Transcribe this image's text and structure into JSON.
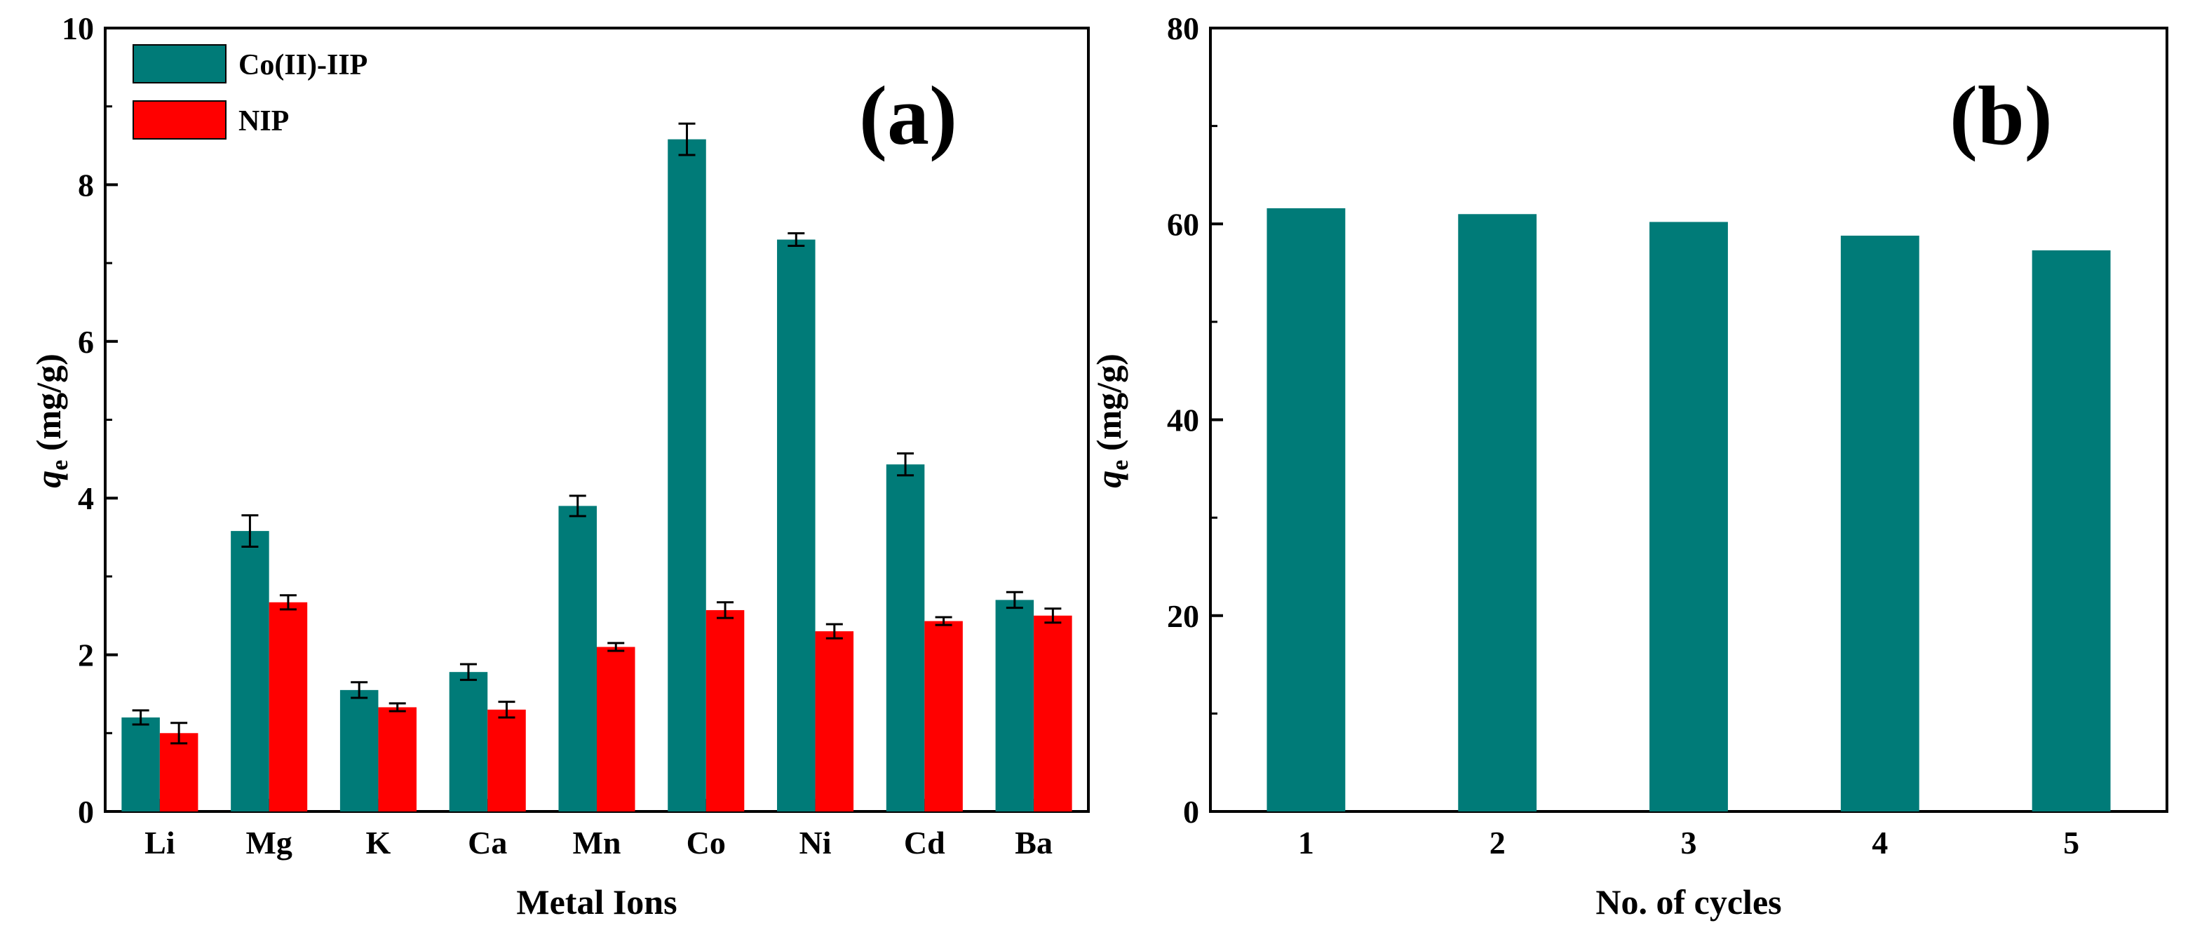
{
  "chart_data": [
    {
      "panel": "(a)",
      "type": "bar",
      "title": "",
      "xlabel": "Metal Ions",
      "ylabel_main": "q",
      "ylabel_sub": "e",
      "ylabel_unit": " (mg/g)",
      "ylim": [
        0,
        10
      ],
      "yticks": [
        0,
        2,
        4,
        6,
        8,
        10
      ],
      "categories": [
        "Li",
        "Mg",
        "K",
        "Ca",
        "Mn",
        "Co",
        "Ni",
        "Cd",
        "Ba"
      ],
      "series": [
        {
          "name": "Co(II)-IIP",
          "color": "#007b78",
          "values": [
            1.2,
            3.58,
            1.55,
            1.78,
            3.9,
            8.58,
            7.3,
            4.43,
            2.7
          ],
          "errors": [
            0.09,
            0.2,
            0.1,
            0.1,
            0.13,
            0.2,
            0.08,
            0.14,
            0.1
          ]
        },
        {
          "name": "NIP",
          "color": "#ff0000",
          "values": [
            1.0,
            2.67,
            1.33,
            1.3,
            2.1,
            2.57,
            2.3,
            2.43,
            2.5
          ],
          "errors": [
            0.13,
            0.09,
            0.05,
            0.1,
            0.05,
            0.1,
            0.09,
            0.05,
            0.09
          ]
        }
      ],
      "legend_position": "top-left"
    },
    {
      "panel": "(b)",
      "type": "bar",
      "title": "",
      "xlabel": "No. of cycles",
      "ylabel_main": "q",
      "ylabel_sub": "e",
      "ylabel_unit": " (mg/g)",
      "ylim": [
        0,
        80
      ],
      "yticks": [
        0,
        20,
        40,
        60,
        80
      ],
      "categories": [
        "1",
        "2",
        "3",
        "4",
        "5"
      ],
      "series": [
        {
          "name": "q_e",
          "color": "#007b78",
          "values": [
            61.6,
            61.0,
            60.2,
            58.8,
            57.3
          ]
        }
      ]
    }
  ]
}
